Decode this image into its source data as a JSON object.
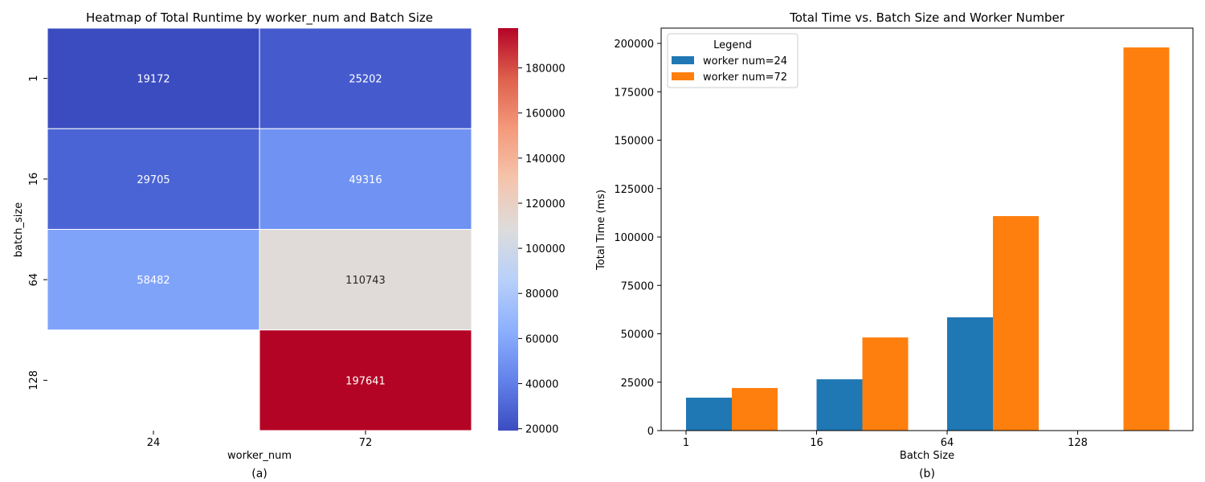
{
  "chart_data": [
    {
      "type": "heatmap",
      "title": "Heatmap of Total Runtime by worker_num and Batch Size",
      "xlabel": "worker_num",
      "ylabel": "batch_size",
      "caption": "(a)",
      "x_categories": [
        "24",
        "72"
      ],
      "y_categories": [
        "1",
        "16",
        "64",
        "128"
      ],
      "values": [
        [
          19172,
          25202
        ],
        [
          29705,
          49316
        ],
        [
          58482,
          110743
        ],
        [
          null,
          197641
        ]
      ],
      "labels": [
        [
          "19172",
          "25202"
        ],
        [
          "29705",
          "49316"
        ],
        [
          "58482",
          "110743"
        ],
        [
          "",
          "197641"
        ]
      ],
      "cell_colors": [
        [
          "#3b4cc0",
          "#455bcd"
        ],
        [
          "#4b64d5",
          "#6f92f3"
        ],
        [
          "#80a3fa",
          "#e0dbd8"
        ],
        [
          "#ffffff",
          "#b40426"
        ]
      ],
      "text_colors": [
        [
          "#ffffff",
          "#ffffff"
        ],
        [
          "#ffffff",
          "#ffffff"
        ],
        [
          "#ffffff",
          "#262626"
        ],
        [
          "#ffffff",
          "#ffffff"
        ]
      ],
      "colorbar": {
        "range": [
          19172,
          197641
        ],
        "ticks": [
          20000,
          40000,
          60000,
          80000,
          100000,
          120000,
          140000,
          160000,
          180000
        ],
        "tick_labels": [
          "20000",
          "40000",
          "60000",
          "80000",
          "100000",
          "120000",
          "140000",
          "160000",
          "180000"
        ],
        "colormap_stops": [
          "#3b4cc0",
          "#6282ea",
          "#8db0fe",
          "#b8d0f9",
          "#dddcdc",
          "#f5c4ac",
          "#f49a7b",
          "#de604d",
          "#b40426"
        ]
      }
    },
    {
      "type": "bar",
      "title": "Total Time vs. Batch Size and Worker Number",
      "xlabel": "Batch Size",
      "ylabel": "Total Time (ms)",
      "caption": "(b)",
      "categories": [
        "1",
        "16",
        "64",
        "128"
      ],
      "ylim": [
        0,
        207500
      ],
      "yticks": [
        0,
        25000,
        50000,
        75000,
        100000,
        125000,
        150000,
        175000,
        200000
      ],
      "ytick_labels": [
        "0",
        "25000",
        "50000",
        "75000",
        "100000",
        "125000",
        "150000",
        "175000",
        "200000"
      ],
      "legend": {
        "title": "Legend",
        "placement": "top-left"
      },
      "series": [
        {
          "name": "worker num=24",
          "color": "#1f77b4",
          "values": [
            17000,
            26500,
            58500,
            null
          ]
        },
        {
          "name": "worker num=72",
          "color": "#ff7f0e",
          "values": [
            22000,
            48100,
            110800,
            197900
          ]
        }
      ]
    }
  ]
}
